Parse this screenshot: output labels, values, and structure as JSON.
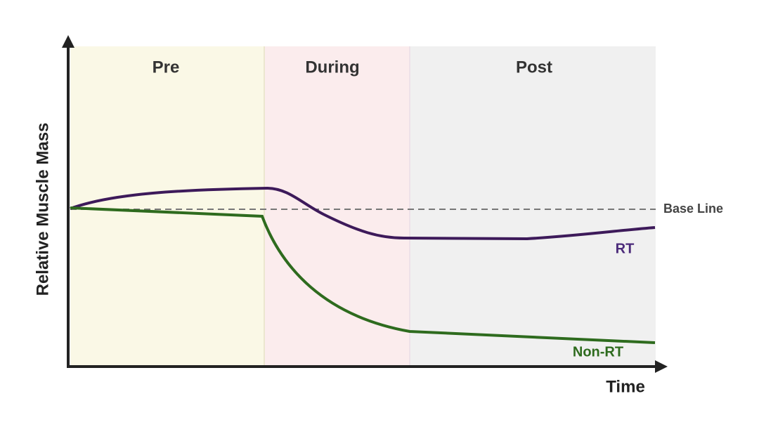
{
  "phases": [
    "Pre",
    "During",
    "Post"
  ],
  "axes": {
    "y_label": "Relative Muscle Mass",
    "x_label": "Time"
  },
  "lines": {
    "baseline": "Base Line",
    "rt": "RT",
    "non_rt": "Non-RT"
  }
}
